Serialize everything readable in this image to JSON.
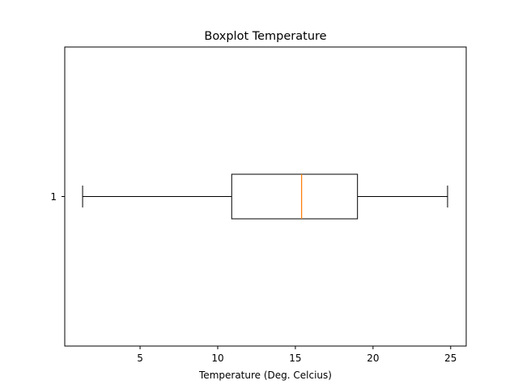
{
  "chart_data": {
    "type": "boxplot",
    "orientation": "horizontal",
    "title": "Boxplot Temperature",
    "xlabel": "Temperature (Deg. Celcius)",
    "ylabel": "",
    "xlim": [
      0.15,
      26.0
    ],
    "xticks": [
      5,
      10,
      15,
      20,
      25
    ],
    "xtick_labels": [
      "5",
      "10",
      "15",
      "20",
      "25"
    ],
    "categories": [
      "1"
    ],
    "boxes": [
      {
        "label": "1",
        "whisker_low": 1.3,
        "q1": 10.9,
        "median": 15.4,
        "q3": 19.0,
        "whisker_high": 24.8
      }
    ],
    "grid": false,
    "colors": {
      "box": "#000000",
      "median": "#ff7f0e",
      "axes": "#000000"
    }
  }
}
